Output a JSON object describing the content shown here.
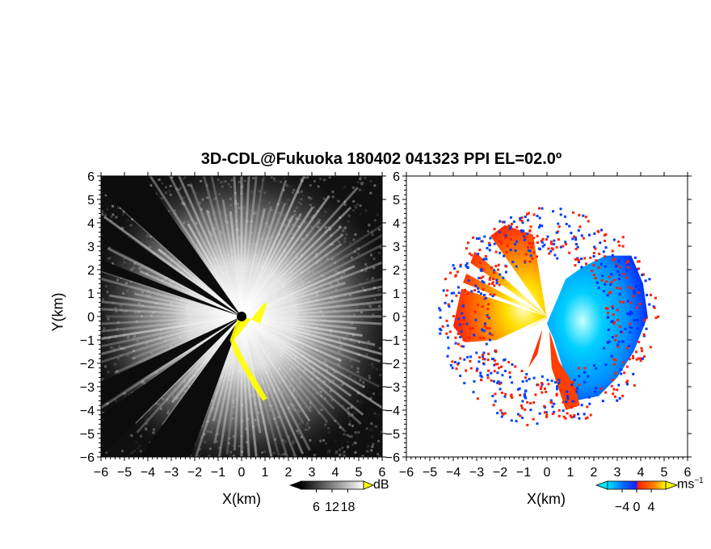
{
  "title": "3D-CDL@Fukuoka 180402 041323 PPI EL=02.0º",
  "chart_data": [
    {
      "type": "heatmap",
      "panel": "left",
      "field": "signal intensity",
      "xlabel": "X(km)",
      "ylabel": "Y(km)",
      "xlim": [
        -6,
        6
      ],
      "ylim": [
        -6,
        6
      ],
      "xticks": [
        "−6",
        "−5",
        "−4",
        "−3",
        "−2",
        "−1",
        "0",
        "1",
        "2",
        "3",
        "4",
        "5",
        "6"
      ],
      "yticks": [
        "−6",
        "−5",
        "−4",
        "−3",
        "−2",
        "−1",
        "0",
        "1",
        "2",
        "3",
        "4",
        "5",
        "6"
      ],
      "colorbar": {
        "ticks": [
          "6",
          "12",
          "18"
        ],
        "unit": "dB",
        "colors": [
          "#000000",
          "#ffffff"
        ]
      },
      "highlight_color": "#ffff00",
      "beam_blocked_sectors_deg": [
        [
          125,
          138
        ],
        [
          145,
          152
        ],
        [
          158,
          162
        ],
        [
          205,
          212
        ],
        [
          215,
          225
        ],
        [
          234,
          250
        ]
      ]
    },
    {
      "type": "heatmap",
      "panel": "right",
      "field": "Doppler velocity",
      "xlabel": "X(km)",
      "xlim": [
        -6,
        6
      ],
      "ylim": [
        -6,
        6
      ],
      "xticks": [
        "−6",
        "−5",
        "−4",
        "−3",
        "−2",
        "−1",
        "0",
        "1",
        "2",
        "3",
        "4",
        "5",
        "6"
      ],
      "yticks": [
        "6",
        "5",
        "4",
        "3",
        "2",
        "1",
        "0",
        "−1",
        "−2",
        "−3",
        "−4",
        "−5",
        "−6"
      ],
      "colorbar": {
        "ticks": [
          "−4",
          "0",
          "4"
        ],
        "unit": "ms",
        "unit_exp": "−1",
        "colors": [
          "#00e5ff",
          "#0040ff",
          "#ff2000",
          "#ffff00"
        ]
      },
      "approaching_color": "#00c8ff",
      "receding_color": "#ff6000"
    }
  ]
}
